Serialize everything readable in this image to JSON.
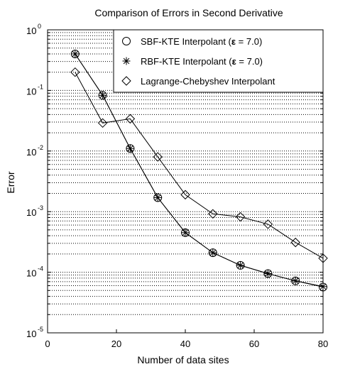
{
  "chart_data": {
    "type": "line",
    "title": "Comparison of Errors in Second Derivative",
    "xlabel": "Number of data sites",
    "ylabel": "Error",
    "xlim": [
      0,
      80
    ],
    "ylim": [
      1e-05,
      1
    ],
    "yscale": "log",
    "grid": "y-major-and-minor-dotted",
    "legend_position": "top-right",
    "x_ticks": [
      {
        "value": 0,
        "label": "0"
      },
      {
        "value": 20,
        "label": "20"
      },
      {
        "value": 40,
        "label": "40"
      },
      {
        "value": 60,
        "label": "60"
      },
      {
        "value": 80,
        "label": "80"
      }
    ],
    "y_ticks": [
      {
        "value": 1,
        "base": "10",
        "exp": "0"
      },
      {
        "value": 0.1,
        "base": "10",
        "exp": "-1"
      },
      {
        "value": 0.01,
        "base": "10",
        "exp": "-2"
      },
      {
        "value": 0.001,
        "base": "10",
        "exp": "-3"
      },
      {
        "value": 0.0001,
        "base": "10",
        "exp": "-4"
      },
      {
        "value": 1e-05,
        "base": "10",
        "exp": "-5"
      }
    ],
    "x": [
      8,
      16,
      24,
      32,
      40,
      48,
      56,
      64,
      72,
      80
    ],
    "series": [
      {
        "name": "SBF-KTE Interpolant (ε = 7.0)",
        "legend_prefix": "SBF-KTE Interpolant (",
        "legend_symbol": "ε",
        "legend_suffix": " = 7.0)",
        "marker": "circle",
        "values": [
          0.4,
          0.083,
          0.011,
          0.0017,
          0.00045,
          0.00021,
          0.00013,
          9.5e-05,
          7.2e-05,
          5.7e-05
        ]
      },
      {
        "name": "RBF-KTE Interpolant (ε = 7.0)",
        "legend_prefix": "RBF-KTE Interpolant (",
        "legend_symbol": "ε",
        "legend_suffix": " = 7.0)",
        "marker": "asterisk",
        "values": [
          0.4,
          0.083,
          0.011,
          0.0017,
          0.00045,
          0.00021,
          0.00013,
          9.5e-05,
          7.2e-05,
          5.8e-05
        ]
      },
      {
        "name": "Lagrange-Chebyshev Interpolant",
        "legend_prefix": "Lagrange-Chebyshev Interpolant",
        "legend_symbol": "",
        "legend_suffix": "",
        "marker": "diamond",
        "values": [
          0.2,
          0.029,
          0.034,
          0.008,
          0.0019,
          0.00092,
          0.00082,
          0.00062,
          0.00031,
          0.00017
        ]
      }
    ]
  }
}
